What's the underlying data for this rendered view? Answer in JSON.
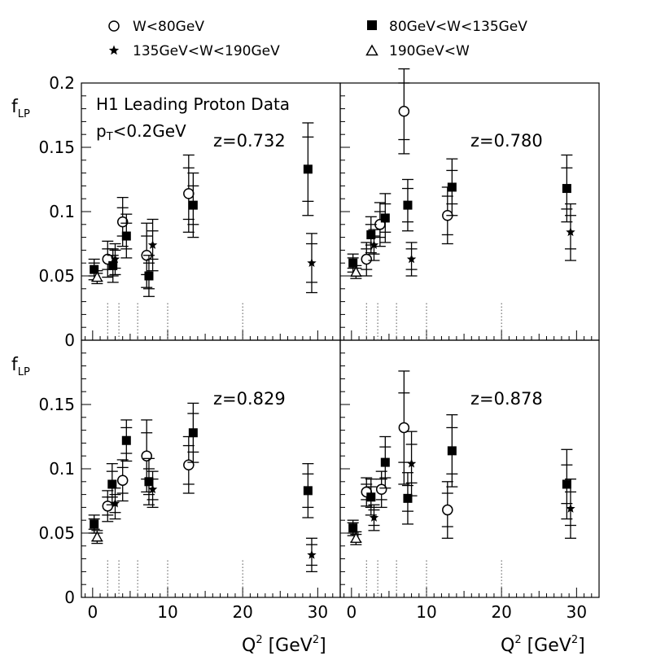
{
  "chart_data": {
    "type": "scatter",
    "title": "H1 Leading Proton Data",
    "subtitle_prefix": "p",
    "subtitle_sub": "T",
    "subtitle_suffix": "<0.2GeV",
    "ylabel": "f",
    "ylabel_sub": "LP",
    "xlabel": "Q",
    "xlabel_sup": "2",
    "xlabel_unit_open": " [GeV",
    "xlabel_unit_sup": "2",
    "xlabel_unit_close": "]",
    "xlim": [
      -1.5,
      33
    ],
    "ylim": [
      0,
      0.2
    ],
    "xticks": [
      "0",
      "10",
      "20",
      "30"
    ],
    "yticks": [
      "0",
      "0.05",
      "0.1",
      "0.15",
      "0.2"
    ],
    "bin_edges": [
      2,
      3.5,
      6,
      10,
      20
    ],
    "legend": [
      {
        "label": "W<80GeV",
        "marker": "circle-open"
      },
      {
        "label": "80GeV<W<135GeV",
        "marker": "square-filled"
      },
      {
        "label": "135GeV<W<190GeV",
        "marker": "star"
      },
      {
        "label": "190GeV<W",
        "marker": "triangle-open"
      }
    ],
    "panels": [
      {
        "z_label": "z=0.732",
        "series": [
          {
            "name": "W<80GeV",
            "points": [
              {
                "x": 2.0,
                "y": 0.063,
                "err_stat": 0.008,
                "err_tot": 0.014
              },
              {
                "x": 4.0,
                "y": 0.092,
                "err_stat": 0.011,
                "err_tot": 0.019
              },
              {
                "x": 7.2,
                "y": 0.066,
                "err_stat": 0.015,
                "err_tot": 0.025
              },
              {
                "x": 12.8,
                "y": 0.114,
                "err_stat": 0.02,
                "err_tot": 0.03
              }
            ]
          },
          {
            "name": "80GeV<W<135GeV",
            "points": [
              {
                "x": 0.2,
                "y": 0.055,
                "err_stat": 0.005,
                "err_tot": 0.008
              },
              {
                "x": 2.7,
                "y": 0.058,
                "err_stat": 0.008,
                "err_tot": 0.013
              },
              {
                "x": 4.5,
                "y": 0.081,
                "err_stat": 0.01,
                "err_tot": 0.017
              },
              {
                "x": 7.5,
                "y": 0.05,
                "err_stat": 0.01,
                "err_tot": 0.016
              },
              {
                "x": 13.4,
                "y": 0.105,
                "err_stat": 0.015,
                "err_tot": 0.025
              },
              {
                "x": 28.7,
                "y": 0.133,
                "err_stat": 0.025,
                "err_tot": 0.036
              }
            ]
          },
          {
            "name": "135GeV<W<190GeV",
            "points": [
              {
                "x": 3.0,
                "y": 0.063,
                "err_stat": 0.007,
                "err_tot": 0.012
              },
              {
                "x": 8.0,
                "y": 0.074,
                "err_stat": 0.011,
                "err_tot": 0.02
              },
              {
                "x": 29.2,
                "y": 0.06,
                "err_stat": 0.015,
                "err_tot": 0.023
              }
            ]
          },
          {
            "name": "190GeV<W",
            "points": [
              {
                "x": 0.6,
                "y": 0.049,
                "err_stat": 0.003,
                "err_tot": 0.005
              }
            ]
          }
        ]
      },
      {
        "z_label": "z=0.780",
        "series": [
          {
            "name": "W<80GeV",
            "points": [
              {
                "x": 2.0,
                "y": 0.063,
                "err_stat": 0.008,
                "err_tot": 0.013
              },
              {
                "x": 3.8,
                "y": 0.09,
                "err_stat": 0.01,
                "err_tot": 0.017
              },
              {
                "x": 7.0,
                "y": 0.178,
                "err_stat": 0.022,
                "err_tot": 0.033
              },
              {
                "x": 12.8,
                "y": 0.097,
                "err_stat": 0.015,
                "err_tot": 0.022
              }
            ]
          },
          {
            "name": "80GeV<W<135GeV",
            "points": [
              {
                "x": 0.2,
                "y": 0.06,
                "err_stat": 0.004,
                "err_tot": 0.007
              },
              {
                "x": 2.6,
                "y": 0.082,
                "err_stat": 0.008,
                "err_tot": 0.014
              },
              {
                "x": 4.5,
                "y": 0.095,
                "err_stat": 0.011,
                "err_tot": 0.019
              },
              {
                "x": 7.5,
                "y": 0.105,
                "err_stat": 0.013,
                "err_tot": 0.02
              },
              {
                "x": 13.4,
                "y": 0.119,
                "err_stat": 0.013,
                "err_tot": 0.022
              },
              {
                "x": 28.7,
                "y": 0.118,
                "err_stat": 0.016,
                "err_tot": 0.026
              }
            ]
          },
          {
            "name": "135GeV<W<190GeV",
            "points": [
              {
                "x": 3.0,
                "y": 0.074,
                "err_stat": 0.007,
                "err_tot": 0.012
              },
              {
                "x": 8.0,
                "y": 0.063,
                "err_stat": 0.008,
                "err_tot": 0.013
              },
              {
                "x": 29.2,
                "y": 0.084,
                "err_stat": 0.013,
                "err_tot": 0.022
              }
            ]
          },
          {
            "name": "190GeV<W",
            "points": [
              {
                "x": 0.6,
                "y": 0.053,
                "err_stat": 0.003,
                "err_tot": 0.005
              }
            ]
          }
        ]
      },
      {
        "z_label": "z=0.829",
        "series": [
          {
            "name": "W<80GeV",
            "points": [
              {
                "x": 2.0,
                "y": 0.071,
                "err_stat": 0.007,
                "err_tot": 0.012
              },
              {
                "x": 4.0,
                "y": 0.091,
                "err_stat": 0.01,
                "err_tot": 0.016
              },
              {
                "x": 7.2,
                "y": 0.11,
                "err_stat": 0.018,
                "err_tot": 0.028
              },
              {
                "x": 12.8,
                "y": 0.103,
                "err_stat": 0.015,
                "err_tot": 0.022
              }
            ]
          },
          {
            "name": "80GeV<W<135GeV",
            "points": [
              {
                "x": 0.2,
                "y": 0.057,
                "err_stat": 0.004,
                "err_tot": 0.007
              },
              {
                "x": 2.6,
                "y": 0.088,
                "err_stat": 0.01,
                "err_tot": 0.016
              },
              {
                "x": 4.5,
                "y": 0.122,
                "err_stat": 0.01,
                "err_tot": 0.016
              },
              {
                "x": 7.5,
                "y": 0.09,
                "err_stat": 0.01,
                "err_tot": 0.018
              },
              {
                "x": 13.4,
                "y": 0.128,
                "err_stat": 0.015,
                "err_tot": 0.023
              },
              {
                "x": 28.7,
                "y": 0.083,
                "err_stat": 0.013,
                "err_tot": 0.021
              }
            ]
          },
          {
            "name": "135GeV<W<190GeV",
            "points": [
              {
                "x": 3.0,
                "y": 0.073,
                "err_stat": 0.007,
                "err_tot": 0.012
              },
              {
                "x": 8.0,
                "y": 0.084,
                "err_stat": 0.008,
                "err_tot": 0.014
              },
              {
                "x": 29.2,
                "y": 0.033,
                "err_stat": 0.008,
                "err_tot": 0.013
              }
            ]
          },
          {
            "name": "190GeV<W",
            "points": [
              {
                "x": 0.6,
                "y": 0.047,
                "err_stat": 0.003,
                "err_tot": 0.005
              }
            ]
          }
        ]
      },
      {
        "z_label": "z=0.878",
        "series": [
          {
            "name": "W<80GeV",
            "points": [
              {
                "x": 2.0,
                "y": 0.082,
                "err_stat": 0.006,
                "err_tot": 0.011
              },
              {
                "x": 4.0,
                "y": 0.084,
                "err_stat": 0.008,
                "err_tot": 0.014
              },
              {
                "x": 7.0,
                "y": 0.132,
                "err_stat": 0.027,
                "err_tot": 0.044
              },
              {
                "x": 12.8,
                "y": 0.068,
                "err_stat": 0.013,
                "err_tot": 0.022
              }
            ]
          },
          {
            "name": "80GeV<W<135GeV",
            "points": [
              {
                "x": 0.2,
                "y": 0.054,
                "err_stat": 0.004,
                "err_tot": 0.006
              },
              {
                "x": 2.6,
                "y": 0.078,
                "err_stat": 0.008,
                "err_tot": 0.014
              },
              {
                "x": 4.5,
                "y": 0.105,
                "err_stat": 0.012,
                "err_tot": 0.02
              },
              {
                "x": 7.5,
                "y": 0.077,
                "err_stat": 0.01,
                "err_tot": 0.02
              },
              {
                "x": 13.4,
                "y": 0.114,
                "err_stat": 0.018,
                "err_tot": 0.028
              },
              {
                "x": 28.7,
                "y": 0.088,
                "err_stat": 0.015,
                "err_tot": 0.027
              }
            ]
          },
          {
            "name": "135GeV<W<190GeV",
            "points": [
              {
                "x": 3.0,
                "y": 0.062,
                "err_stat": 0.006,
                "err_tot": 0.01
              },
              {
                "x": 8.0,
                "y": 0.104,
                "err_stat": 0.015,
                "err_tot": 0.025
              },
              {
                "x": 29.2,
                "y": 0.069,
                "err_stat": 0.013,
                "err_tot": 0.023
              }
            ]
          },
          {
            "name": "190GeV<W",
            "points": [
              {
                "x": 0.6,
                "y": 0.046,
                "err_stat": 0.003,
                "err_tot": 0.005
              }
            ]
          }
        ]
      }
    ]
  }
}
